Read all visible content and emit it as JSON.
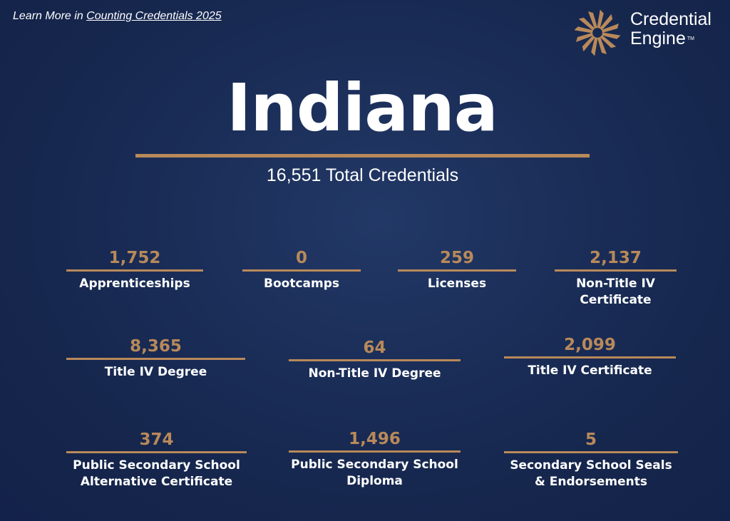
{
  "header": {
    "learn_prefix": "Learn More in ",
    "learn_link": "Counting Credentials 2025"
  },
  "logo": {
    "line1": "Credential",
    "line2": "Engine",
    "tm": "TM",
    "icon": "credential-engine-logo-icon",
    "color": "#b8895a"
  },
  "title": "Indiana",
  "total": "16,551 Total Credentials",
  "stats": [
    {
      "value": "1,752",
      "label": "Apprenticeships"
    },
    {
      "value": "0",
      "label": "Bootcamps"
    },
    {
      "value": "259",
      "label": "Licenses"
    },
    {
      "value": "2,137",
      "label": "Non-Title IV\nCertificate"
    },
    {
      "value": "8,365",
      "label": "Title IV Degree"
    },
    {
      "value": "64",
      "label": "Non-Title IV Degree"
    },
    {
      "value": "2,099",
      "label": "Title IV Certificate"
    },
    {
      "value": "374",
      "label": "Public Secondary School\nAlternative Certificate"
    },
    {
      "value": "1,496",
      "label": "Public Secondary School\nDiploma"
    },
    {
      "value": "5",
      "label": "Secondary School Seals\n& Endorsements"
    }
  ],
  "colors": {
    "background": "#1a2d57",
    "accent": "#b8895a",
    "text": "#ffffff"
  }
}
